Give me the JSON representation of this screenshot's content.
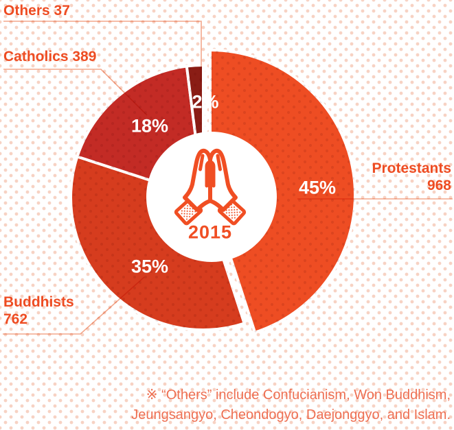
{
  "chart_data": {
    "type": "pie",
    "style": "donut",
    "direction": "clockwise",
    "start_angle_deg": 0,
    "center_label": "2015",
    "center_icon": "praying-hands",
    "legend_position": "callouts",
    "segments": [
      {
        "name": "Protestants",
        "value": 968,
        "pct": 45,
        "pct_label": "45%",
        "color": "#ee4d23",
        "emphasized": true
      },
      {
        "name": "Buddhists",
        "value": 762,
        "pct": 35,
        "pct_label": "35%",
        "color": "#d63c1e",
        "emphasized": false
      },
      {
        "name": "Catholics",
        "value": 389,
        "pct": 18,
        "pct_label": "18%",
        "color": "#c32b25",
        "emphasized": false
      },
      {
        "name": "Others",
        "value": 37,
        "pct": 2,
        "pct_label": "2%",
        "color": "#8a1d15",
        "emphasized": false
      }
    ],
    "footnote": {
      "line1": "※ “Others” include Confucianism, Won Buddhism,",
      "line2": "Jeungsangyo, Cheondogyo, Daejonggyo, and Islam."
    }
  },
  "colors": {
    "callout_text": "#ee4c22",
    "pct_text": "#ffffff",
    "center_label_text": "#f04e23",
    "footnote_text": "#ee6f52",
    "leader_line": "#f3a78b",
    "background_dot": "#f7d2c3"
  }
}
